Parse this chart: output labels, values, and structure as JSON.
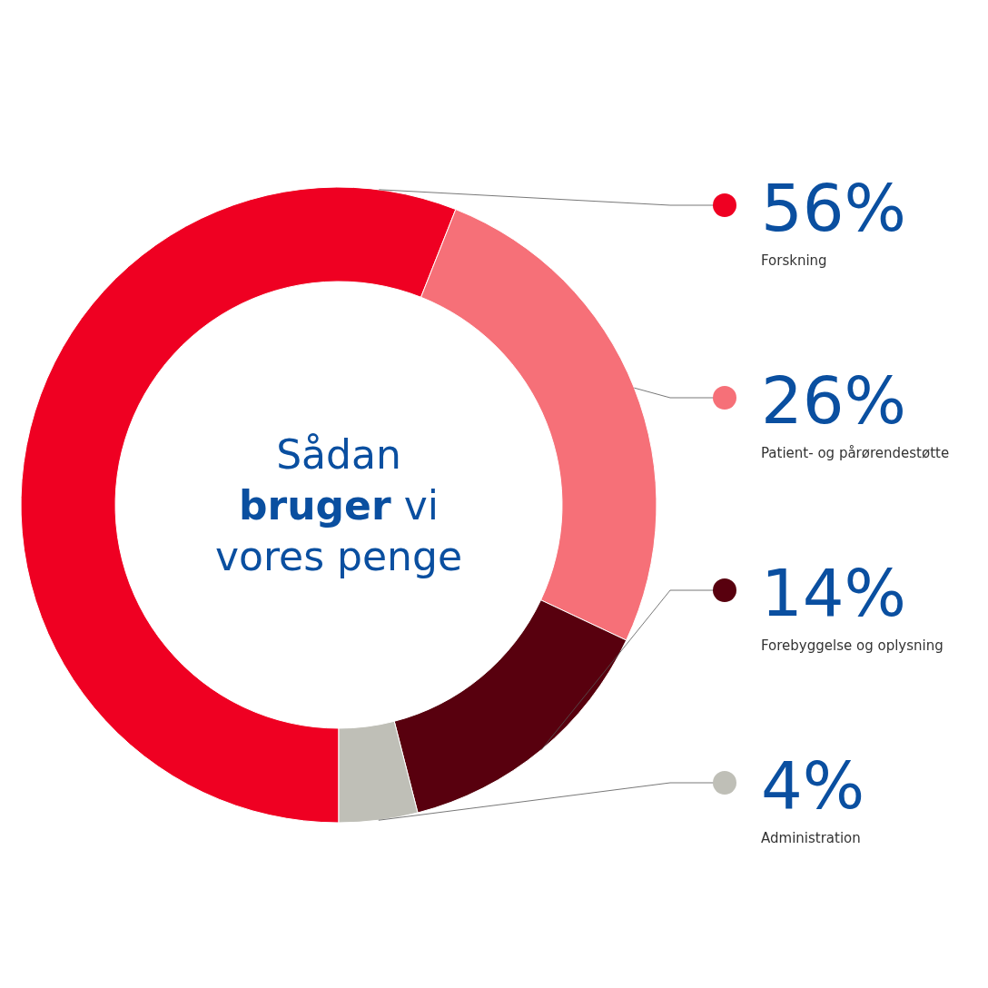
{
  "chart_data": {
    "type": "donut",
    "title": "Sådan bruger vi vores penge",
    "categories": [
      "Forskning",
      "Patient- og pårørendestøtte",
      "Forebyggelse og oplysning",
      "Administration"
    ],
    "values": [
      56,
      26,
      14,
      4
    ],
    "value_labels": [
      "56%",
      "26%",
      "14%",
      "4%"
    ],
    "colors": [
      "#ef0022",
      "#f67078",
      "#58000e",
      "#bfbfb7"
    ]
  }
}
